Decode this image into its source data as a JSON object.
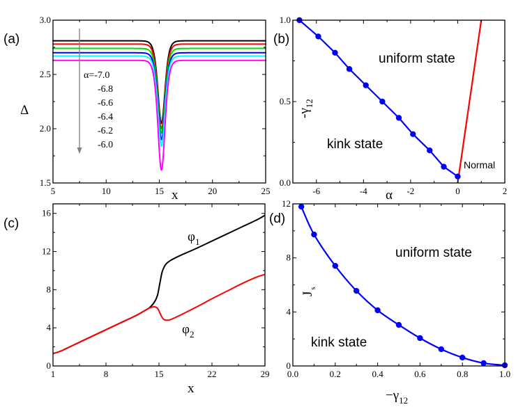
{
  "figure": {
    "panels": [
      "(a)",
      "(b)",
      "(c)",
      "(d)"
    ]
  },
  "chart_data": [
    {
      "panel": "(a)",
      "type": "line",
      "xlabel": "x",
      "ylabel": "Δ",
      "xlim": [
        5,
        25
      ],
      "ylim": [
        1.5,
        3.0
      ],
      "xticks": [
        5,
        10,
        15,
        20,
        25
      ],
      "yticks": [
        1.5,
        2.0,
        2.5,
        3.0
      ],
      "yticklabels": [
        "1.5",
        "2.0",
        "2.5",
        "3.0"
      ],
      "dip_center": 15.2,
      "dip_width": 0.45,
      "legend": {
        "title_prefix": "α=",
        "entries": [
          "-7.0",
          "-6.8",
          "-6.6",
          "-6.4",
          "-6.2",
          "-6.0"
        ],
        "arrow": "down"
      },
      "series": [
        {
          "name": "α=-7.0",
          "color": "#000000",
          "plateau": 2.81,
          "minimum": 2.05
        },
        {
          "name": "α=-6.8",
          "color": "#ff0000",
          "plateau": 2.78,
          "minimum": 2.0
        },
        {
          "name": "α=-6.6",
          "color": "#00dd00",
          "plateau": 2.74,
          "minimum": 1.96
        },
        {
          "name": "α=-6.4",
          "color": "#0000ff",
          "plateau": 2.7,
          "minimum": 1.9
        },
        {
          "name": "α=-6.2",
          "color": "#00ffff",
          "plateau": 2.67,
          "minimum": 1.84
        },
        {
          "name": "α=-6.0",
          "color": "#ff00ff",
          "plateau": 2.63,
          "minimum": 1.62
        }
      ]
    },
    {
      "panel": "(b)",
      "type": "line",
      "xlabel": "α",
      "ylabel": "-γ12",
      "xlim": [
        -7,
        2
      ],
      "ylim": [
        0,
        1.0
      ],
      "xticks": [
        -6,
        -4,
        -2,
        0,
        2
      ],
      "yticks": [
        0.0,
        0.5,
        1.0
      ],
      "yticklabels": [
        "0.0",
        "0.5",
        "1.0"
      ],
      "annotations": [
        "uniform state",
        "kink state",
        "Normal"
      ],
      "series": [
        {
          "name": "kink–uniform boundary",
          "color": "#0000ff",
          "markers": true,
          "x": [
            -6.72,
            -5.92,
            -5.21,
            -4.6,
            -3.9,
            -3.2,
            -2.5,
            -1.9,
            -1.19,
            -0.59,
            0.0
          ],
          "y": [
            1.0,
            0.9,
            0.8,
            0.7,
            0.6,
            0.5,
            0.4,
            0.3,
            0.2,
            0.1,
            0.04
          ]
        },
        {
          "name": "normal boundary",
          "color": "#ff0000",
          "markers": false,
          "x": [
            0.0,
            1.0
          ],
          "y": [
            0.0,
            1.0
          ]
        }
      ]
    },
    {
      "panel": "(c)",
      "type": "line",
      "xlabel": "x",
      "ylabel": "",
      "xlim": [
        1,
        29
      ],
      "ylim": [
        0,
        17
      ],
      "xticks": [
        1,
        8,
        15,
        22,
        29
      ],
      "yticks": [
        0,
        4,
        8,
        12,
        16
      ],
      "series": [
        {
          "name": "φ1",
          "label_main": "φ",
          "label_sub": "1",
          "color": "#000000",
          "x": [
            1,
            2,
            4,
            6,
            8,
            10,
            12,
            13,
            13.8,
            14.4,
            14.8,
            15.1,
            15.4,
            15.7,
            16.0,
            16.5,
            17.2,
            18,
            20,
            22,
            24,
            26,
            28,
            29
          ],
          "y": [
            1.3,
            1.55,
            2.3,
            3.05,
            3.8,
            4.55,
            5.3,
            5.75,
            6.15,
            6.7,
            7.4,
            8.6,
            9.8,
            10.4,
            10.75,
            11.05,
            11.35,
            11.65,
            12.35,
            13.1,
            13.85,
            14.6,
            15.35,
            15.8
          ]
        },
        {
          "name": "φ2",
          "label_main": "φ",
          "label_sub": "2",
          "color": "#ff0000",
          "x": [
            1,
            2,
            4,
            6,
            8,
            10,
            12,
            13,
            13.8,
            14.4,
            14.8,
            15.1,
            15.4,
            15.7,
            16.0,
            16.5,
            17.2,
            18,
            20,
            22,
            24,
            26,
            28,
            29
          ],
          "y": [
            1.3,
            1.55,
            2.3,
            3.05,
            3.8,
            4.55,
            5.3,
            5.75,
            6.1,
            6.2,
            6.05,
            5.6,
            5.1,
            4.85,
            4.8,
            4.85,
            5.1,
            5.4,
            6.2,
            7.05,
            7.85,
            8.65,
            9.35,
            9.6
          ]
        }
      ]
    },
    {
      "panel": "(d)",
      "type": "line",
      "xlabel": "−γ12",
      "ylabel": "J_s",
      "xlim": [
        0.0,
        1.0
      ],
      "ylim": [
        0,
        12
      ],
      "xticks": [
        0.0,
        0.2,
        0.4,
        0.6,
        0.8,
        1.0
      ],
      "xticklabels": [
        "0.0",
        "0.2",
        "0.4",
        "0.6",
        "0.8",
        "1.0"
      ],
      "yticks": [
        0,
        4,
        8,
        12
      ],
      "annotations": [
        "uniform state",
        "kink state"
      ],
      "series": [
        {
          "name": "critical current",
          "color": "#0000ff",
          "markers": true,
          "x": [
            0.04,
            0.1,
            0.2,
            0.3,
            0.4,
            0.5,
            0.6,
            0.7,
            0.8,
            0.9,
            1.0
          ],
          "y": [
            11.79,
            9.73,
            7.41,
            5.56,
            4.12,
            3.04,
            2.06,
            1.24,
            0.62,
            0.21,
            0.05
          ]
        }
      ]
    }
  ],
  "labels": {
    "a_panel": "(a)",
    "b_panel": "(b)",
    "c_panel": "(c)",
    "d_panel": "(d)",
    "a_xlabel": "x",
    "a_ylabel": "Δ",
    "b_xlabel": "α",
    "b_ylabel_main": "-γ",
    "b_ylabel_sub": "12",
    "c_xlabel": "x",
    "d_xlabel_main": "−γ",
    "d_xlabel_sub": "12",
    "d_ylabel_main": "J",
    "d_ylabel_sub": "s",
    "b_uniform": "uniform state",
    "b_kink": "kink state",
    "b_normal": "Normal",
    "d_uniform": "uniform state",
    "d_kink": "kink state",
    "c_phi1_main": "φ",
    "c_phi1_sub": "1",
    "c_phi2_main": "φ",
    "c_phi2_sub": "2"
  }
}
